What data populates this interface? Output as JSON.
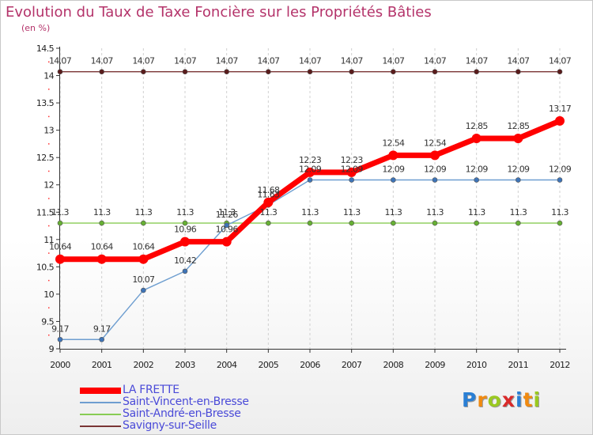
{
  "title": "Evolution du Taux de Taxe Foncière sur les Propriétés Bâties",
  "subtitle": "(en %)",
  "chart_data": {
    "type": "line",
    "title": "Evolution du Taux de Taxe Foncière sur les Propriétés Bâties",
    "ylabel": "(en %)",
    "xlabel": "",
    "categories": [
      "2000",
      "2001",
      "2002",
      "2003",
      "2004",
      "2005",
      "2006",
      "2007",
      "2008",
      "2009",
      "2010",
      "2011",
      "2012"
    ],
    "ylim": [
      9,
      14.5
    ],
    "yticks": [
      "9",
      "9.5",
      "10",
      "10.5",
      "11",
      "11.5",
      "12",
      "12.5",
      "13",
      "13.5",
      "14",
      "14.5"
    ],
    "series": [
      {
        "name": "Savigny-sur-Seille",
        "color": "#7a3535",
        "marker": "#5a1c1c",
        "values": [
          14.07,
          14.07,
          14.07,
          14.07,
          14.07,
          14.07,
          14.07,
          14.07,
          14.07,
          14.07,
          14.07,
          14.07,
          14.07
        ],
        "labels": [
          "14.07",
          "14.07",
          "14.07",
          "14.07",
          "14.07",
          "14.07",
          "14.07",
          "14.07",
          "14.07",
          "14.07",
          "14.07",
          "14.07",
          "14.07"
        ]
      },
      {
        "name": "Saint-André-en-Bresse",
        "color": "#88cc55",
        "marker": "#66b033",
        "values": [
          11.3,
          11.3,
          11.3,
          11.3,
          11.3,
          11.3,
          11.3,
          11.3,
          11.3,
          11.3,
          11.3,
          11.3,
          11.3
        ],
        "labels": [
          "11.3",
          "11.3",
          "11.3",
          "11.3",
          "11.3",
          "11.3",
          "11.3",
          "11.3",
          "11.3",
          "11.3",
          "11.3",
          "11.3",
          "11.3"
        ]
      },
      {
        "name": "Saint-Vincent-en-Bresse",
        "color": "#6e9ed0",
        "marker": "#3e74b8",
        "values": [
          9.17,
          9.17,
          10.07,
          10.42,
          11.26,
          11.63,
          12.09,
          12.09,
          12.09,
          12.09,
          12.09,
          12.09,
          12.09
        ],
        "labels": [
          "9.17",
          "9.17",
          "10.07",
          "10.42",
          "11.26",
          "11.63",
          "12.09",
          "12.09",
          "12.09",
          "12.09",
          "12.09",
          "12.09",
          "12.09"
        ]
      },
      {
        "name": "LA FRETTE",
        "color": "#ff0000",
        "marker": "#ff0000",
        "values": [
          10.64,
          10.64,
          10.64,
          10.96,
          10.96,
          11.68,
          12.23,
          12.23,
          12.54,
          12.54,
          12.85,
          12.85,
          13.17
        ],
        "labels": [
          "10.64",
          "10.64",
          "10.64",
          "10.96",
          "10.96",
          "11.68",
          "12.23",
          "12.23",
          "12.54",
          "12.54",
          "12.85",
          "12.85",
          "13.17"
        ]
      }
    ],
    "grid": "vertical dashed"
  },
  "legend": [
    {
      "name": "LA FRETTE",
      "color": "#ff0000"
    },
    {
      "name": "Saint-Vincent-en-Bresse",
      "color": "#6e9ed0"
    },
    {
      "name": "Saint-André-en-Bresse",
      "color": "#88cc55"
    },
    {
      "name": "Savigny-sur-Seille",
      "color": "#7a3535"
    }
  ],
  "logo": {
    "letters": [
      "P",
      "r",
      "o",
      "x",
      "i",
      "t",
      "i"
    ],
    "colors": [
      "#2a7fd4",
      "#f08a10",
      "#9ac920",
      "#d92a2a",
      "#2a7fd4",
      "#f08a10",
      "#9ac920"
    ]
  }
}
